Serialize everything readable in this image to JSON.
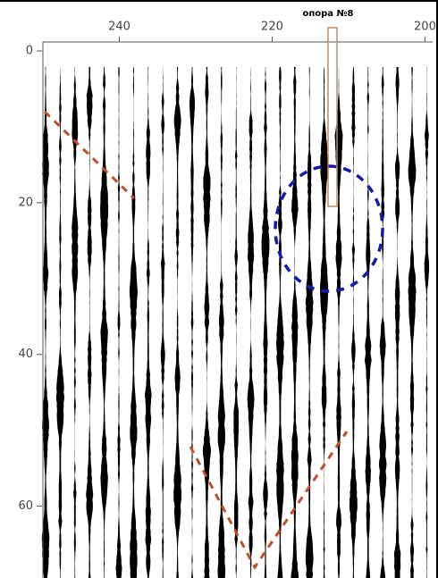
{
  "chart_data": {
    "type": "wiggle",
    "annotation": "опора №8",
    "xlim": [
      250,
      199
    ],
    "xticks": [
      240,
      220,
      200
    ],
    "ylim": [
      0,
      69
    ],
    "yticks": [
      0,
      20,
      40,
      60
    ]
  }
}
